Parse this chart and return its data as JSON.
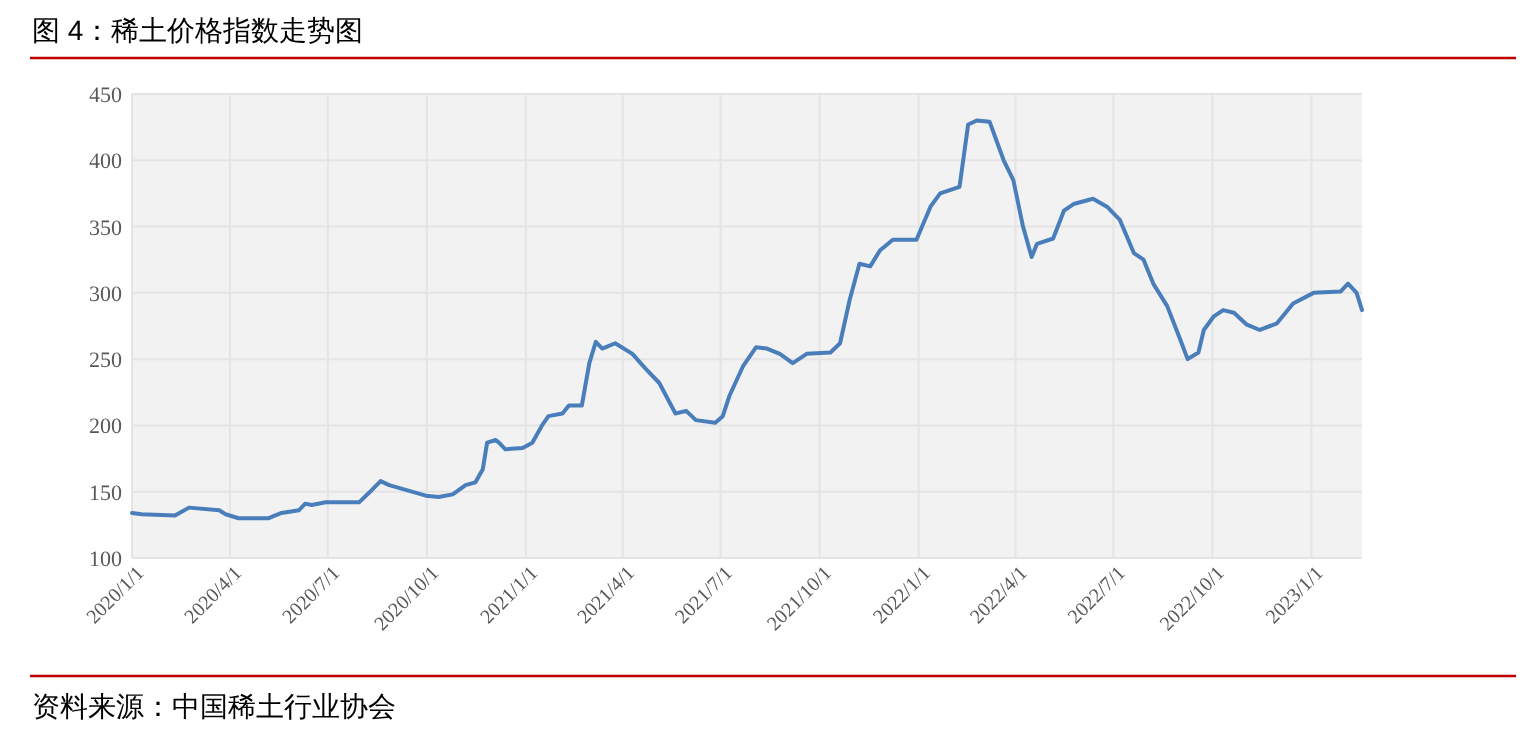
{
  "chart_data": {
    "type": "line",
    "title": "图 4：稀土价格指数走势图",
    "annotations": [
      "资料来源：中国稀土行业协会"
    ],
    "xlim": [
      "2020-01-01",
      "2023-02-17"
    ],
    "xticks": [
      {
        "value": "2020-01-01",
        "label": "2020/1/1"
      },
      {
        "value": "2020-04-01",
        "label": "2020/4/1"
      },
      {
        "value": "2020-07-01",
        "label": "2020/7/1"
      },
      {
        "value": "2020-10-01",
        "label": "2020/10/1"
      },
      {
        "value": "2021-01-01",
        "label": "2021/1/1"
      },
      {
        "value": "2021-04-01",
        "label": "2021/4/1"
      },
      {
        "value": "2021-07-01",
        "label": "2021/7/1"
      },
      {
        "value": "2021-10-01",
        "label": "2021/10/1"
      },
      {
        "value": "2022-01-01",
        "label": "2022/1/1"
      },
      {
        "value": "2022-04-01",
        "label": "2022/4/1"
      },
      {
        "value": "2022-07-01",
        "label": "2022/7/1"
      },
      {
        "value": "2022-10-01",
        "label": "2022/10/1"
      },
      {
        "value": "2023-01-01",
        "label": "2023/1/1"
      }
    ],
    "ylim": [
      100,
      450
    ],
    "yticks": [
      100,
      150,
      200,
      250,
      300,
      350,
      400,
      450
    ],
    "grid": true,
    "marker": "none",
    "line_style": "solid",
    "series": [
      {
        "color": "#4a7ebb",
        "x": [
          "2020-01-01",
          "2020-01-10",
          "2020-02-10",
          "2020-02-23",
          "2020-03-22",
          "2020-03-28",
          "2020-04-09",
          "2020-05-07",
          "2020-05-19",
          "2020-06-04",
          "2020-06-10",
          "2020-06-16",
          "2020-06-29",
          "2020-07-30",
          "2020-08-08",
          "2020-08-19",
          "2020-08-27",
          "2020-09-30",
          "2020-10-12",
          "2020-10-25",
          "2020-11-06",
          "2020-11-15",
          "2020-11-22",
          "2020-11-26",
          "2020-12-04",
          "2020-12-07",
          "2020-12-13",
          "2020-12-29",
          "2021-01-07",
          "2021-01-16",
          "2021-01-22",
          "2021-02-04",
          "2021-02-10",
          "2021-02-22",
          "2021-03-01",
          "2021-03-07",
          "2021-03-13",
          "2021-03-25",
          "2021-04-10",
          "2021-04-22",
          "2021-05-05",
          "2021-05-20",
          "2021-05-30",
          "2021-06-08",
          "2021-06-26",
          "2021-07-03",
          "2021-07-09",
          "2021-07-22",
          "2021-08-03",
          "2021-08-13",
          "2021-08-25",
          "2021-09-06",
          "2021-09-19",
          "2021-10-11",
          "2021-10-20",
          "2021-10-29",
          "2021-11-07",
          "2021-11-17",
          "2021-11-26",
          "2021-12-08",
          "2021-12-30",
          "2022-01-12",
          "2022-01-21",
          "2022-02-08",
          "2022-02-16",
          "2022-02-24",
          "2022-03-08",
          "2022-03-21",
          "2022-03-30",
          "2022-04-08",
          "2022-04-16",
          "2022-04-21",
          "2022-05-06",
          "2022-05-16",
          "2022-05-25",
          "2022-06-12",
          "2022-06-25",
          "2022-07-07",
          "2022-07-20",
          "2022-07-29",
          "2022-08-07",
          "2022-08-20",
          "2022-09-01",
          "2022-09-08",
          "2022-09-18",
          "2022-09-23",
          "2022-10-02",
          "2022-10-11",
          "2022-10-21",
          "2022-11-02",
          "2022-11-14",
          "2022-11-30",
          "2022-12-15",
          "2023-01-03",
          "2023-01-28",
          "2023-02-04",
          "2023-02-12",
          "2023-02-17"
        ],
        "values": [
          134,
          133,
          132,
          138,
          136,
          133,
          130,
          130,
          134,
          136,
          141,
          140,
          142,
          142,
          149,
          158,
          155,
          147,
          146,
          148,
          155,
          157,
          167,
          187,
          189,
          187,
          182,
          183,
          187,
          200,
          207,
          209,
          215,
          215,
          247,
          263,
          258,
          262,
          254,
          243,
          232,
          209,
          211,
          204,
          202,
          207,
          222,
          245,
          259,
          258,
          254,
          247,
          254,
          255,
          262,
          295,
          322,
          320,
          332,
          340,
          340,
          365,
          375,
          380,
          427,
          430,
          429,
          400,
          385,
          350,
          327,
          337,
          341,
          362,
          367,
          371,
          365,
          355,
          330,
          325,
          307,
          290,
          265,
          250,
          255,
          272,
          282,
          287,
          285,
          276,
          272,
          277,
          292,
          300,
          301,
          307,
          300,
          287
        ]
      }
    ]
  }
}
